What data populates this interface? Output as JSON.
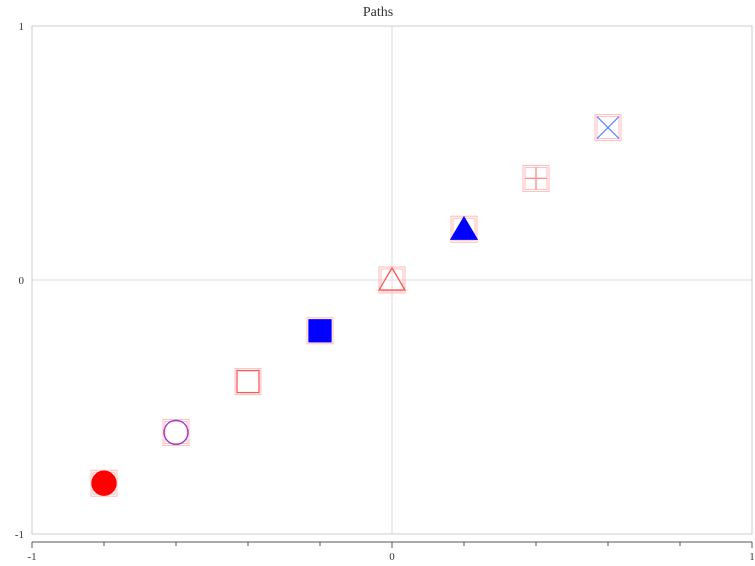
{
  "chart_data": {
    "type": "scatter",
    "title": "Paths",
    "xlim": [
      -1,
      1
    ],
    "ylim": [
      -1,
      1
    ],
    "grid": "zero lines only",
    "x_ticks": [
      -1,
      0,
      1
    ],
    "y_ticks": [
      -1,
      0,
      1
    ],
    "x_minor_ticks": [
      -0.8,
      -0.6,
      -0.4,
      -0.2,
      0.2,
      0.4,
      0.6,
      0.8
    ],
    "points": [
      {
        "x": -0.8,
        "y": -0.8,
        "marker": "circle",
        "filled": true,
        "color": "#ff0000"
      },
      {
        "x": -0.6,
        "y": -0.6,
        "marker": "circle",
        "filled": false,
        "color": "#9933cc"
      },
      {
        "x": -0.4,
        "y": -0.4,
        "marker": "square",
        "filled": false,
        "color": "#ff5555"
      },
      {
        "x": -0.2,
        "y": -0.2,
        "marker": "square",
        "filled": true,
        "color": "#0000ff"
      },
      {
        "x": 0.0,
        "y": 0.0,
        "marker": "triangle",
        "filled": false,
        "color": "#ff5555"
      },
      {
        "x": 0.2,
        "y": 0.2,
        "marker": "triangle",
        "filled": true,
        "color": "#0000ff"
      },
      {
        "x": 0.4,
        "y": 0.4,
        "marker": "plus",
        "filled": false,
        "color": "#ff8888"
      },
      {
        "x": 0.6,
        "y": 0.6,
        "marker": "cross",
        "filled": false,
        "color": "#6688ff"
      }
    ]
  },
  "colors": {
    "axis": "#cccccc",
    "grid": "#dddddd",
    "marker_box": "#ffbbbb"
  }
}
